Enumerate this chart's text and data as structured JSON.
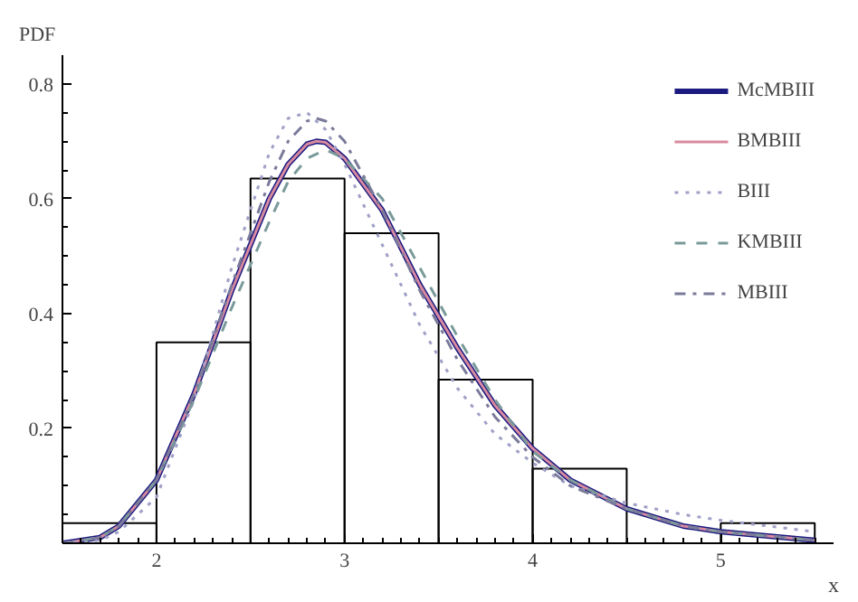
{
  "chart_data": {
    "type": "histogram",
    "xlabel": "x",
    "ylabel": "PDF",
    "bins": [
      1.5,
      2,
      2.5,
      3,
      3.5,
      4,
      4.5,
      5,
      5.5
    ],
    "values": [
      0.035,
      0.35,
      0.635,
      0.54,
      0.285,
      0.13,
      0,
      0.035
    ],
    "color": "#000000",
    "xlim": [
      1.5,
      5.6
    ],
    "ylim": [
      0,
      0.85
    ],
    "xticks": [
      2,
      3,
      4,
      5
    ],
    "yticks": [
      0.2,
      0.4,
      0.6,
      0.8
    ],
    "grid": false,
    "legend": "top right",
    "series": [
      {
        "name": "McMBIII",
        "type": "line",
        "color": "#1a1a80",
        "line_style": "solid",
        "x": [
          1.5,
          1.7,
          1.8,
          2.0,
          2.2,
          2.4,
          2.6,
          2.7,
          2.8,
          2.85,
          2.9,
          3.0,
          3.2,
          3.4,
          3.6,
          3.8,
          4.0,
          4.2,
          4.5,
          4.8,
          5.0,
          5.5
        ],
        "values": [
          0,
          0.01,
          0.03,
          0.11,
          0.26,
          0.44,
          0.6,
          0.66,
          0.695,
          0.7,
          0.698,
          0.67,
          0.58,
          0.45,
          0.34,
          0.24,
          0.165,
          0.11,
          0.06,
          0.03,
          0.02,
          0.005
        ]
      },
      {
        "name": "BMBIII",
        "type": "line",
        "color": "#d88aa0",
        "line_style": "solid",
        "x": [
          1.5,
          1.7,
          1.8,
          2.0,
          2.2,
          2.4,
          2.6,
          2.7,
          2.8,
          2.85,
          2.9,
          3.0,
          3.2,
          3.4,
          3.6,
          3.8,
          4.0,
          4.2,
          4.5,
          4.8,
          5.0,
          5.5
        ],
        "values": [
          0,
          0.01,
          0.03,
          0.11,
          0.26,
          0.44,
          0.6,
          0.66,
          0.695,
          0.7,
          0.698,
          0.67,
          0.58,
          0.45,
          0.34,
          0.24,
          0.165,
          0.11,
          0.06,
          0.03,
          0.02,
          0.005
        ]
      },
      {
        "name": "BIII",
        "type": "line",
        "color": "#a0a0c8",
        "line_style": "dotted",
        "x": [
          1.5,
          1.7,
          1.8,
          2.0,
          2.2,
          2.4,
          2.6,
          2.7,
          2.8,
          2.9,
          3.0,
          3.2,
          3.4,
          3.6,
          3.8,
          4.0,
          4.2,
          4.5,
          4.8,
          5.0,
          5.5
        ],
        "values": [
          0,
          0.005,
          0.02,
          0.08,
          0.25,
          0.48,
          0.68,
          0.74,
          0.75,
          0.72,
          0.66,
          0.52,
          0.38,
          0.27,
          0.19,
          0.14,
          0.1,
          0.07,
          0.05,
          0.04,
          0.02
        ]
      },
      {
        "name": "KMBIII",
        "type": "line",
        "color": "#7a9a9a",
        "line_style": "dashed",
        "x": [
          1.5,
          1.7,
          1.8,
          2.0,
          2.2,
          2.4,
          2.6,
          2.7,
          2.8,
          2.9,
          3.0,
          3.2,
          3.4,
          3.6,
          3.8,
          4.0,
          4.2,
          4.5,
          4.8,
          5.0,
          5.5
        ],
        "values": [
          0,
          0.01,
          0.03,
          0.11,
          0.25,
          0.41,
          0.56,
          0.63,
          0.67,
          0.685,
          0.67,
          0.6,
          0.48,
          0.36,
          0.25,
          0.16,
          0.11,
          0.06,
          0.03,
          0.02,
          0.005
        ]
      },
      {
        "name": "MBIII",
        "type": "line",
        "color": "#7a7a9a",
        "line_style": "dashdot",
        "x": [
          1.5,
          1.7,
          1.8,
          2.0,
          2.2,
          2.4,
          2.6,
          2.7,
          2.8,
          2.85,
          2.9,
          3.0,
          3.2,
          3.4,
          3.6,
          3.8,
          4.0,
          4.2,
          4.5,
          4.8,
          5.0,
          5.5
        ],
        "values": [
          0,
          0.01,
          0.03,
          0.11,
          0.26,
          0.45,
          0.63,
          0.7,
          0.735,
          0.74,
          0.735,
          0.7,
          0.58,
          0.44,
          0.32,
          0.22,
          0.15,
          0.1,
          0.06,
          0.03,
          0.02,
          0.005
        ]
      }
    ]
  }
}
